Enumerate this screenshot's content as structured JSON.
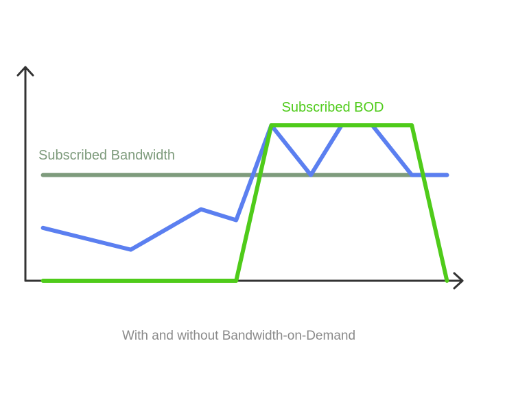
{
  "chart_data": {
    "type": "line",
    "title": "",
    "caption": "With and without Bandwidth-on-Demand",
    "xlabel": "",
    "ylabel": "",
    "xlim": [
      0,
      100
    ],
    "ylim": [
      0,
      100
    ],
    "grid": false,
    "legend": "none",
    "series": [
      {
        "key": "usage",
        "color": "#5b7ff0",
        "points": [
          [
            4,
            34
          ],
          [
            24,
            20
          ],
          [
            40,
            46
          ],
          [
            48,
            39
          ],
          [
            56,
            100
          ],
          [
            65,
            68
          ],
          [
            72,
            100
          ],
          [
            79,
            100
          ],
          [
            88,
            68
          ],
          [
            96,
            68
          ]
        ]
      },
      {
        "key": "bod",
        "name": "Subscribed BOD",
        "color": "#4fcb1a",
        "points": [
          [
            4,
            0
          ],
          [
            48,
            0
          ],
          [
            56,
            100
          ],
          [
            71,
            100
          ],
          [
            88,
            100
          ],
          [
            96,
            0
          ]
        ]
      },
      {
        "key": "subscribed",
        "name": "Subscribed Bandwidth",
        "color": "#7e9b7c",
        "points": [
          [
            4,
            68
          ],
          [
            96,
            68
          ]
        ]
      }
    ],
    "annotations": [
      {
        "text": "Subscribed BOD",
        "color": "#4fcb1a"
      },
      {
        "text": "Subscribed Bandwidth",
        "color": "#7e9b7c"
      }
    ]
  }
}
